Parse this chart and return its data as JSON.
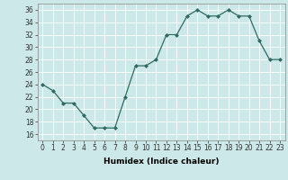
{
  "x": [
    0,
    1,
    2,
    3,
    4,
    5,
    6,
    7,
    8,
    9,
    10,
    11,
    12,
    13,
    14,
    15,
    16,
    17,
    18,
    19,
    20,
    21,
    22,
    23
  ],
  "y": [
    24,
    23,
    21,
    21,
    19,
    17,
    17,
    17,
    22,
    27,
    27,
    28,
    32,
    32,
    35,
    36,
    35,
    35,
    36,
    35,
    35,
    31,
    28,
    28
  ],
  "line_color": "#2e6b63",
  "marker_color": "#2e6b63",
  "bg_color": "#cce8e8",
  "grid_color": "#ffffff",
  "xlabel": "Humidex (Indice chaleur)",
  "ylim": [
    15,
    37
  ],
  "xlim": [
    -0.5,
    23.5
  ],
  "yticks": [
    16,
    18,
    20,
    22,
    24,
    26,
    28,
    30,
    32,
    34,
    36
  ],
  "xticks": [
    0,
    1,
    2,
    3,
    4,
    5,
    6,
    7,
    8,
    9,
    10,
    11,
    12,
    13,
    14,
    15,
    16,
    17,
    18,
    19,
    20,
    21,
    22,
    23
  ],
  "xlabel_fontsize": 6.5,
  "tick_fontsize": 5.5
}
